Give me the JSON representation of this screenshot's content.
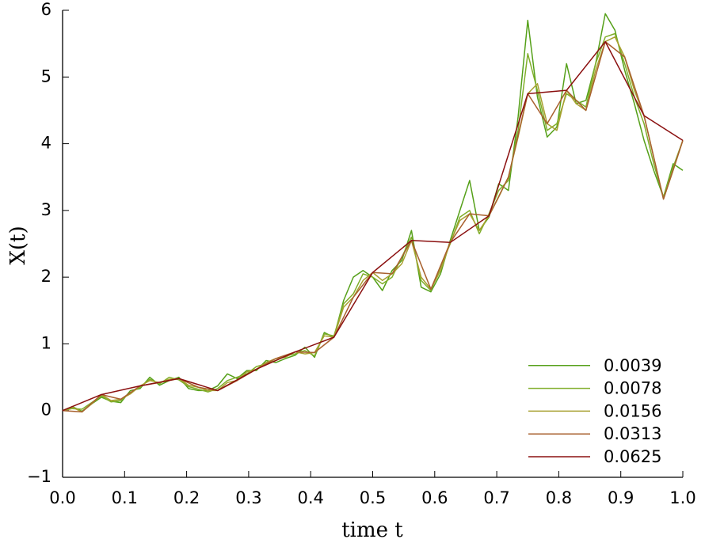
{
  "chart_data": {
    "type": "line",
    "xlabel": "time t",
    "ylabel": "X(t)",
    "xlim": [
      0,
      1
    ],
    "ylim": [
      -1,
      6
    ],
    "xticks": [
      {
        "value": 0,
        "label": "0.0"
      },
      0.1,
      0.2,
      0.3,
      0.4,
      0.5,
      0.6,
      0.7,
      0.8,
      0.9,
      {
        "value": 1,
        "label": "1.0"
      }
    ],
    "yticks": [
      {
        "value": -1,
        "label": "−1"
      },
      0,
      1,
      2,
      3,
      4,
      5,
      6
    ],
    "legend": "lower right",
    "series": [
      {
        "name": "0.0039",
        "color": "#55a019",
        "x": [
          0,
          0.0156,
          0.0313,
          0.0469,
          0.0625,
          0.0781,
          0.0938,
          0.1094,
          0.125,
          0.1406,
          0.1563,
          0.1719,
          0.1875,
          0.2031,
          0.2188,
          0.2344,
          0.25,
          0.2656,
          0.2813,
          0.2969,
          0.3125,
          0.3281,
          0.3438,
          0.3594,
          0.375,
          0.3906,
          0.4063,
          0.4219,
          0.4375,
          0.4531,
          0.4688,
          0.4844,
          0.5,
          0.5156,
          0.5313,
          0.5469,
          0.5625,
          0.5781,
          0.5938,
          0.6094,
          0.625,
          0.6406,
          0.6563,
          0.6719,
          0.6875,
          0.7031,
          0.7188,
          0.7344,
          0.75,
          0.7656,
          0.7813,
          0.7969,
          0.8125,
          0.8281,
          0.8438,
          0.8594,
          0.875,
          0.8906,
          0.9063,
          0.9219,
          0.9375,
          0.9531,
          0.9688,
          0.9844,
          1
        ],
        "values": [
          0,
          0.06,
          -0.01,
          0.1,
          0.2,
          0.14,
          0.12,
          0.3,
          0.33,
          0.5,
          0.38,
          0.45,
          0.5,
          0.33,
          0.3,
          0.3,
          0.37,
          0.55,
          0.48,
          0.6,
          0.6,
          0.75,
          0.72,
          0.78,
          0.83,
          0.95,
          0.8,
          1.17,
          1.1,
          1.65,
          2.0,
          2.1,
          2.0,
          1.8,
          2.1,
          2.25,
          2.7,
          1.85,
          1.78,
          2.05,
          2.55,
          3.0,
          3.45,
          2.7,
          2.9,
          3.4,
          3.3,
          4.4,
          5.85,
          4.7,
          4.1,
          4.25,
          5.2,
          4.6,
          4.65,
          5.2,
          5.95,
          5.7,
          5.1,
          4.6,
          4.05,
          3.6,
          3.2,
          3.7,
          3.6
        ]
      },
      {
        "name": "0.0078",
        "color": "#80ae2a",
        "x": [
          0,
          0.0156,
          0.0313,
          0.0469,
          0.0625,
          0.0781,
          0.0938,
          0.1094,
          0.125,
          0.1406,
          0.1563,
          0.1719,
          0.1875,
          0.2031,
          0.2188,
          0.2344,
          0.25,
          0.2656,
          0.2813,
          0.2969,
          0.3125,
          0.3281,
          0.3438,
          0.3594,
          0.375,
          0.3906,
          0.4063,
          0.4219,
          0.4375,
          0.4531,
          0.4688,
          0.4844,
          0.5,
          0.5156,
          0.5313,
          0.5469,
          0.5625,
          0.5781,
          0.5938,
          0.6094,
          0.625,
          0.6406,
          0.6563,
          0.6719,
          0.6875,
          0.7031,
          0.7188,
          0.7344,
          0.75,
          0.7656,
          0.7813,
          0.7969,
          0.8125,
          0.8281,
          0.8438,
          0.8594,
          0.875,
          0.8906,
          0.9063,
          0.9219,
          0.9375,
          0.9531,
          0.9688,
          0.9844,
          1
        ],
        "values": [
          0,
          0.03,
          0.02,
          0.12,
          0.22,
          0.13,
          0.15,
          0.27,
          0.35,
          0.47,
          0.4,
          0.5,
          0.46,
          0.36,
          0.32,
          0.28,
          0.33,
          0.45,
          0.5,
          0.55,
          0.66,
          0.7,
          0.75,
          0.82,
          0.85,
          0.9,
          0.82,
          1.15,
          1.12,
          1.6,
          1.75,
          2.05,
          2.0,
          1.9,
          2.0,
          2.3,
          2.6,
          1.95,
          1.8,
          2.15,
          2.5,
          2.9,
          3.0,
          2.65,
          2.95,
          3.3,
          3.45,
          4.2,
          5.35,
          4.8,
          4.2,
          4.3,
          4.75,
          4.65,
          4.55,
          5.2,
          5.6,
          5.65,
          5.2,
          4.7,
          4.3,
          3.7,
          3.2,
          3.65,
          4.05
        ]
      },
      {
        "name": "0.0156",
        "color": "#a8a030",
        "x": [
          0,
          0.0156,
          0.0313,
          0.0469,
          0.0625,
          0.0781,
          0.0938,
          0.1094,
          0.125,
          0.1406,
          0.1563,
          0.1719,
          0.1875,
          0.2031,
          0.2188,
          0.2344,
          0.25,
          0.2656,
          0.2813,
          0.2969,
          0.3125,
          0.3281,
          0.3438,
          0.3594,
          0.375,
          0.3906,
          0.4063,
          0.4219,
          0.4375,
          0.4531,
          0.4688,
          0.4844,
          0.5,
          0.5156,
          0.5313,
          0.5469,
          0.5625,
          0.5781,
          0.5938,
          0.6094,
          0.625,
          0.6406,
          0.6563,
          0.6719,
          0.6875,
          0.7031,
          0.7188,
          0.7344,
          0.75,
          0.7656,
          0.7813,
          0.7969,
          0.8125,
          0.8281,
          0.8438,
          0.8594,
          0.875,
          0.8906,
          0.9063,
          0.9219,
          0.9375,
          0.9531,
          0.9688,
          0.9844,
          1
        ],
        "values": [
          0,
          0.05,
          -0.02,
          0.1,
          0.24,
          0.15,
          0.17,
          0.25,
          0.37,
          0.45,
          0.42,
          0.47,
          0.48,
          0.38,
          0.35,
          0.3,
          0.3,
          0.42,
          0.45,
          0.58,
          0.62,
          0.72,
          0.78,
          0.8,
          0.88,
          0.85,
          0.87,
          1.12,
          1.1,
          1.55,
          1.7,
          1.95,
          2.07,
          1.95,
          2.05,
          2.2,
          2.55,
          2.0,
          1.82,
          2.1,
          2.52,
          2.85,
          2.95,
          2.7,
          2.92,
          3.2,
          3.5,
          4.1,
          4.75,
          4.9,
          4.3,
          4.2,
          4.8,
          4.6,
          4.5,
          5.1,
          5.53,
          5.6,
          5.3,
          4.8,
          4.42,
          3.8,
          3.17,
          3.6,
          4.05
        ]
      },
      {
        "name": "0.0313",
        "color": "#a8602e",
        "x": [
          0,
          0.0313,
          0.0625,
          0.0938,
          0.125,
          0.1563,
          0.1875,
          0.2188,
          0.25,
          0.2813,
          0.3125,
          0.3438,
          0.375,
          0.4063,
          0.4375,
          0.4688,
          0.5,
          0.5313,
          0.5625,
          0.5938,
          0.625,
          0.6563,
          0.6875,
          0.7188,
          0.75,
          0.7813,
          0.8125,
          0.8438,
          0.875,
          0.9063,
          0.9375,
          0.9688,
          1
        ],
        "values": [
          0,
          -0.02,
          0.24,
          0.17,
          0.37,
          0.42,
          0.48,
          0.35,
          0.3,
          0.45,
          0.62,
          0.78,
          0.88,
          0.87,
          1.1,
          1.7,
          2.07,
          2.05,
          2.55,
          1.82,
          2.52,
          2.95,
          2.92,
          3.5,
          4.75,
          4.3,
          4.8,
          4.5,
          5.53,
          5.3,
          4.42,
          3.17,
          4.05
        ]
      },
      {
        "name": "0.0625",
        "color": "#8b1010",
        "x": [
          0,
          0.0625,
          0.125,
          0.1875,
          0.25,
          0.3125,
          0.375,
          0.4375,
          0.5,
          0.5625,
          0.625,
          0.6875,
          0.75,
          0.8125,
          0.875,
          0.9375,
          1
        ],
        "values": [
          0,
          0.24,
          0.37,
          0.48,
          0.3,
          0.62,
          0.88,
          1.1,
          2.07,
          2.55,
          2.52,
          2.92,
          4.75,
          4.8,
          5.53,
          4.42,
          4.05
        ]
      }
    ]
  }
}
